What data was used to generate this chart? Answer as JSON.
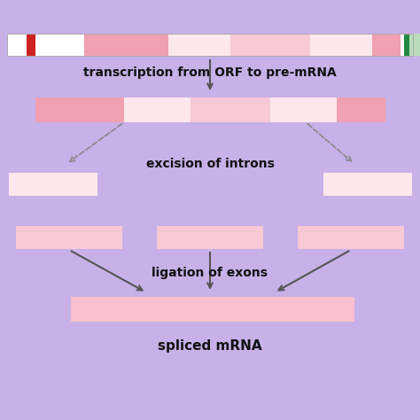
{
  "bg_color": "#c8b0e8",
  "exon_dark": "#f0a0b0",
  "exon_light": "#f8c8d4",
  "intron_light": "#fce8ec",
  "spliced_color": "#f8c0cc",
  "orf_white": "#ffffff",
  "orf_red": "#cc2222",
  "orf_green": "#228844",
  "orf_green_light": "#aaddbb",
  "text_color": "#111111",
  "arrow_color": "#555555",
  "dashed_color": "#888888",
  "label1": "transcription from ORF to pre-mRNA",
  "label2": "excision of introns",
  "label3": "ligation of exons",
  "label4": "spliced mRNA"
}
